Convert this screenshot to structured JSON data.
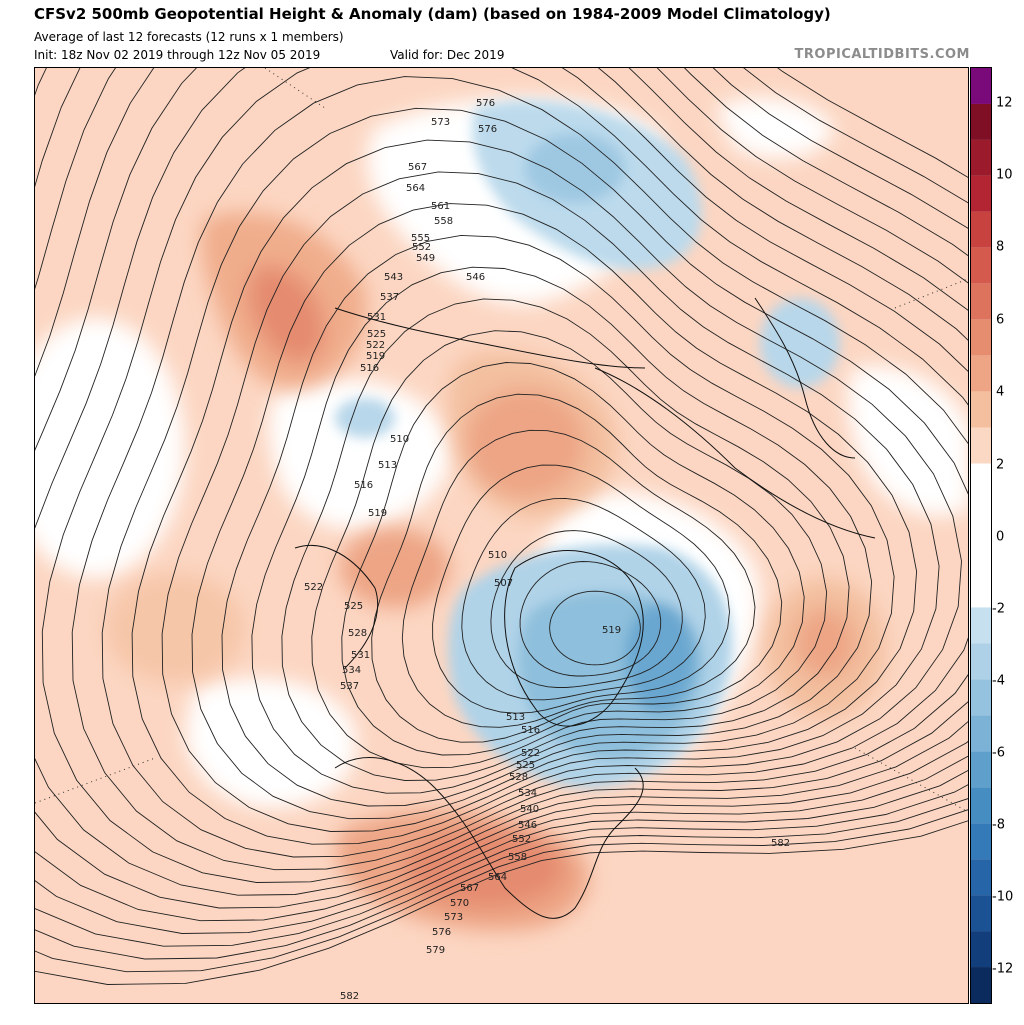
{
  "header": {
    "title": "CFSv2 500mb Geopotential Height & Anomaly (dam) (based on 1984-2009 Model Climatology)",
    "subtitle": "Average of last 12 forecasts (12 runs x 1 members)",
    "init": "Init: 18z Nov 02 2019 through 12z Nov 05 2019",
    "valid": "Valid for: Dec 2019",
    "brand": "TROPICALTIDBITS.COM"
  },
  "colorbar": {
    "ticks": [
      "12",
      "10",
      "8",
      "6",
      "4",
      "2",
      "0",
      "-2",
      "-4",
      "-6",
      "-8",
      "-10",
      "-12"
    ],
    "colors": {
      "plus12": "#7a0a7a",
      "plus11": "#7e0f24",
      "plus10": "#9b1b2c",
      "plus9": "#b32532",
      "plus8": "#c8433f",
      "plus7": "#d35a4c",
      "plus6": "#dd735c",
      "plus5": "#e68d70",
      "plus4": "#eda585",
      "plus3": "#f3bf9f",
      "plus2": "#fad8c3",
      "zero": "#ffffff",
      "minus2": "#c7e0ef",
      "minus3": "#aed1e7",
      "minus4": "#95c2df",
      "minus5": "#7cb2d6",
      "minus6": "#5f9fcc",
      "minus7": "#468dc2",
      "minus8": "#3479b8",
      "minus9": "#2665a8",
      "minus10": "#1b5294",
      "minus11": "#123f7c",
      "minus12": "#0b2a5e"
    }
  },
  "map": {
    "contour_labels": [
      "576",
      "573",
      "576",
      "567",
      "564",
      "561",
      "558",
      "555",
      "552",
      "549",
      "546",
      "543",
      "537",
      "531",
      "525",
      "522",
      "519",
      "516",
      "510",
      "513",
      "516",
      "519",
      "510",
      "507",
      "519",
      "522",
      "525",
      "528",
      "531",
      "534",
      "537",
      "513",
      "516",
      "522",
      "525",
      "528",
      "534",
      "540",
      "546",
      "552",
      "558",
      "564",
      "567",
      "570",
      "573",
      "576",
      "579",
      "582",
      "582"
    ]
  }
}
